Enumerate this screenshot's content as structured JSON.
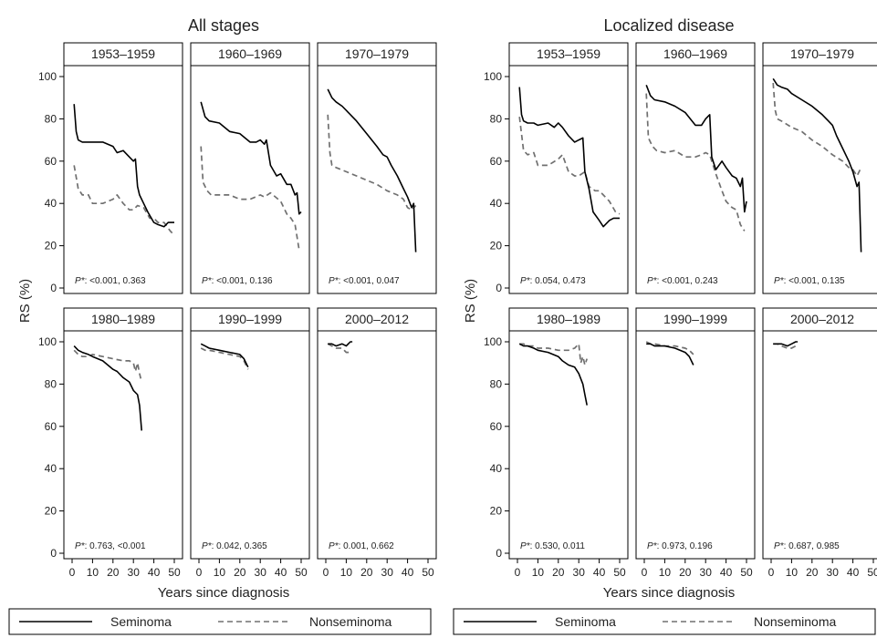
{
  "legend": [
    {
      "name": "Seminoma",
      "color": "#000000",
      "dash": "solid"
    },
    {
      "name": "Nonseminoma",
      "color": "#707070",
      "dash": "dashed"
    }
  ],
  "chart_data": [
    {
      "type": "line",
      "title": "All stages",
      "xlabel": "Years since diagnosis",
      "ylabel": "RS (%)",
      "xlim": [
        0,
        50
      ],
      "ylim": [
        0,
        100
      ],
      "xticks": [
        0,
        10,
        20,
        30,
        40,
        50
      ],
      "yticks": [
        0,
        20,
        40,
        60,
        80,
        100
      ],
      "grid": false,
      "legend_position": "bottom",
      "facets": [
        {
          "label": "1953–1959",
          "pvalue_prefix": "P*",
          "pvalue_text": ": <0.001, 0.363",
          "series": [
            {
              "name": "Seminoma",
              "x": [
                1,
                2,
                3,
                5,
                10,
                15,
                20,
                22,
                25,
                28,
                30,
                31,
                32,
                33,
                35,
                37,
                40,
                42,
                45,
                47,
                50
              ],
              "y": [
                87,
                74,
                70,
                69,
                69,
                69,
                67,
                64,
                65,
                62,
                60,
                61,
                48,
                44,
                40,
                36,
                31,
                30,
                29,
                31,
                31
              ]
            },
            {
              "name": "Nonseminoma",
              "x": [
                1,
                3,
                5,
                8,
                10,
                15,
                20,
                22,
                25,
                28,
                30,
                32,
                35,
                38,
                40,
                42,
                45,
                48,
                50
              ],
              "y": [
                58,
                47,
                44,
                44,
                40,
                40,
                42,
                44,
                40,
                37,
                37,
                39,
                38,
                33,
                33,
                31,
                31,
                27,
                25
              ]
            }
          ]
        },
        {
          "label": "1960–1969",
          "pvalue_prefix": "P*",
          "pvalue_text": ": <0.001, 0.136",
          "series": [
            {
              "name": "Seminoma",
              "x": [
                1,
                3,
                5,
                10,
                15,
                20,
                25,
                28,
                30,
                32,
                33,
                35,
                38,
                40,
                43,
                45,
                47,
                48,
                49,
                50
              ],
              "y": [
                88,
                81,
                79,
                78,
                74,
                73,
                69,
                69,
                70,
                68,
                70,
                58,
                53,
                54,
                49,
                49,
                44,
                45,
                35,
                36
              ]
            },
            {
              "name": "Nonseminoma",
              "x": [
                1,
                2,
                4,
                6,
                10,
                15,
                20,
                25,
                30,
                32,
                35,
                40,
                43,
                45,
                47,
                49
              ],
              "y": [
                67,
                50,
                46,
                44,
                44,
                44,
                42,
                42,
                44,
                43,
                45,
                41,
                35,
                33,
                30,
                18
              ]
            }
          ]
        },
        {
          "label": "1970–1979",
          "pvalue_prefix": "P*",
          "pvalue_text": ": <0.001, 0.047",
          "series": [
            {
              "name": "Seminoma",
              "x": [
                1,
                3,
                5,
                8,
                10,
                15,
                20,
                25,
                28,
                30,
                32,
                35,
                38,
                40,
                42,
                43,
                44
              ],
              "y": [
                94,
                90,
                88,
                86,
                84,
                79,
                73,
                67,
                63,
                62,
                58,
                53,
                47,
                43,
                38,
                40,
                17
              ]
            },
            {
              "name": "Nonseminoma",
              "x": [
                1,
                2,
                3,
                5,
                10,
                15,
                20,
                25,
                30,
                35,
                38,
                40,
                42,
                44
              ],
              "y": [
                82,
                64,
                58,
                57,
                55,
                53,
                51,
                49,
                46,
                44,
                42,
                38,
                37,
                39
              ]
            }
          ]
        },
        {
          "label": "1980–1989",
          "pvalue_prefix": "P*",
          "pvalue_text": ": 0.763, <0.001",
          "series": [
            {
              "name": "Seminoma",
              "x": [
                1,
                3,
                5,
                8,
                10,
                15,
                20,
                22,
                25,
                28,
                30,
                32,
                33,
                34
              ],
              "y": [
                98,
                96,
                95,
                94,
                93,
                91,
                87,
                86,
                83,
                81,
                77,
                75,
                70,
                58
              ]
            },
            {
              "name": "Nonseminoma",
              "x": [
                1,
                3,
                5,
                8,
                10,
                15,
                20,
                25,
                28,
                30,
                31,
                32,
                33,
                34
              ],
              "y": [
                96,
                94,
                93,
                93,
                94,
                93,
                92,
                91,
                91,
                90,
                86,
                90,
                85,
                81
              ]
            }
          ]
        },
        {
          "label": "1990–1999",
          "pvalue_prefix": "P*",
          "pvalue_text": ": 0.042, 0.365",
          "series": [
            {
              "name": "Seminoma",
              "x": [
                1,
                3,
                5,
                10,
                15,
                20,
                22,
                24
              ],
              "y": [
                99,
                98,
                97,
                96,
                95,
                94,
                92,
                88
              ]
            },
            {
              "name": "Nonseminoma",
              "x": [
                1,
                3,
                5,
                10,
                15,
                20,
                22,
                24
              ],
              "y": [
                97,
                96,
                96,
                95,
                94,
                93,
                91,
                87
              ]
            }
          ]
        },
        {
          "label": "2000–2012",
          "pvalue_prefix": "P*",
          "pvalue_text": ": 0.001, 0.662",
          "series": [
            {
              "name": "Seminoma",
              "x": [
                1,
                3,
                5,
                8,
                10,
                12,
                13
              ],
              "y": [
                99,
                99,
                98,
                99,
                98,
                100,
                100
              ]
            },
            {
              "name": "Nonseminoma",
              "x": [
                1,
                3,
                5,
                8,
                10,
                12
              ],
              "y": [
                99,
                98,
                97,
                97,
                95,
                95
              ]
            }
          ]
        }
      ]
    },
    {
      "type": "line",
      "title": "Localized disease",
      "xlabel": "Years since diagnosis",
      "ylabel": "RS (%)",
      "xlim": [
        0,
        50
      ],
      "ylim": [
        0,
        100
      ],
      "xticks": [
        0,
        10,
        20,
        30,
        40,
        50
      ],
      "yticks": [
        0,
        20,
        40,
        60,
        80,
        100
      ],
      "grid": false,
      "legend_position": "bottom",
      "facets": [
        {
          "label": "1953–1959",
          "pvalue_prefix": "P*",
          "pvalue_text": ": 0.054, 0.473",
          "series": [
            {
              "name": "Seminoma",
              "x": [
                1,
                2,
                3,
                5,
                8,
                10,
                15,
                18,
                20,
                22,
                25,
                28,
                30,
                32,
                33,
                35,
                37,
                40,
                42,
                45,
                47,
                50
              ],
              "y": [
                95,
                82,
                79,
                78,
                78,
                77,
                78,
                76,
                78,
                76,
                72,
                69,
                70,
                71,
                55,
                47,
                36,
                32,
                29,
                32,
                33,
                33
              ]
            },
            {
              "name": "Nonseminoma",
              "x": [
                1,
                3,
                5,
                8,
                10,
                15,
                20,
                22,
                25,
                28,
                30,
                33,
                35,
                38,
                40,
                42,
                45,
                48,
                50
              ],
              "y": [
                81,
                65,
                63,
                64,
                58,
                58,
                61,
                63,
                55,
                53,
                53,
                55,
                48,
                46,
                46,
                44,
                41,
                36,
                35
              ]
            }
          ]
        },
        {
          "label": "1960–1969",
          "pvalue_prefix": "P*",
          "pvalue_text": ": <0.001, 0.243",
          "series": [
            {
              "name": "Seminoma",
              "x": [
                1,
                3,
                5,
                10,
                15,
                20,
                25,
                28,
                30,
                32,
                33,
                35,
                38,
                40,
                43,
                45,
                47,
                48,
                49,
                50
              ],
              "y": [
                96,
                91,
                89,
                88,
                86,
                83,
                77,
                77,
                80,
                82,
                62,
                56,
                60,
                57,
                53,
                52,
                48,
                52,
                36,
                41
              ]
            },
            {
              "name": "Nonseminoma",
              "x": [
                1,
                2,
                4,
                6,
                10,
                15,
                20,
                25,
                28,
                30,
                32,
                35,
                38,
                40,
                43,
                45,
                47,
                49
              ],
              "y": [
                92,
                71,
                67,
                65,
                64,
                65,
                62,
                62,
                63,
                64,
                63,
                54,
                46,
                41,
                38,
                37,
                30,
                27
              ]
            }
          ]
        },
        {
          "label": "1970–1979",
          "pvalue_prefix": "P*",
          "pvalue_text": ": <0.001, 0.135",
          "series": [
            {
              "name": "Seminoma",
              "x": [
                1,
                3,
                5,
                8,
                10,
                15,
                20,
                25,
                28,
                30,
                32,
                35,
                38,
                40,
                42,
                43,
                44
              ],
              "y": [
                99,
                96,
                95,
                94,
                92,
                89,
                86,
                82,
                79,
                77,
                72,
                66,
                60,
                55,
                48,
                50,
                17
              ]
            },
            {
              "name": "Nonseminoma",
              "x": [
                1,
                2,
                3,
                5,
                10,
                15,
                20,
                25,
                30,
                35,
                38,
                40,
                42,
                44
              ],
              "y": [
                97,
                84,
                80,
                79,
                76,
                74,
                70,
                67,
                63,
                60,
                57,
                56,
                53,
                57
              ]
            }
          ]
        },
        {
          "label": "1980–1989",
          "pvalue_prefix": "P*",
          "pvalue_text": ": 0.530, 0.011",
          "series": [
            {
              "name": "Seminoma",
              "x": [
                1,
                3,
                5,
                8,
                10,
                15,
                20,
                22,
                25,
                28,
                30,
                32,
                33,
                34
              ],
              "y": [
                99,
                98,
                98,
                97,
                96,
                95,
                93,
                91,
                89,
                88,
                85,
                80,
                75,
                70
              ]
            },
            {
              "name": "Nonseminoma",
              "x": [
                1,
                3,
                5,
                8,
                10,
                15,
                20,
                25,
                28,
                30,
                31,
                32,
                33,
                34
              ],
              "y": [
                99,
                99,
                98,
                98,
                97,
                97,
                96,
                96,
                97,
                99,
                90,
                93,
                89,
                92
              ]
            }
          ]
        },
        {
          "label": "1990–1999",
          "pvalue_prefix": "P*",
          "pvalue_text": ": 0.973, 0.196",
          "series": [
            {
              "name": "Seminoma",
              "x": [
                1,
                3,
                5,
                10,
                15,
                20,
                22,
                24
              ],
              "y": [
                99,
                99,
                98,
                98,
                97,
                95,
                93,
                89
              ]
            },
            {
              "name": "Nonseminoma",
              "x": [
                1,
                3,
                5,
                10,
                15,
                20,
                22,
                24
              ],
              "y": [
                100,
                99,
                99,
                98,
                98,
                97,
                96,
                94
              ]
            }
          ]
        },
        {
          "label": "2000–2012",
          "pvalue_prefix": "P*",
          "pvalue_text": ": 0.687, 0.985",
          "series": [
            {
              "name": "Seminoma",
              "x": [
                1,
                3,
                5,
                8,
                10,
                12,
                13
              ],
              "y": [
                99,
                99,
                99,
                98,
                99,
                100,
                100
              ]
            },
            {
              "name": "Nonseminoma",
              "x": [
                1,
                3,
                5,
                8,
                10,
                12
              ],
              "y": [
                99,
                99,
                98,
                97,
                97,
                98
              ]
            }
          ]
        }
      ]
    }
  ]
}
